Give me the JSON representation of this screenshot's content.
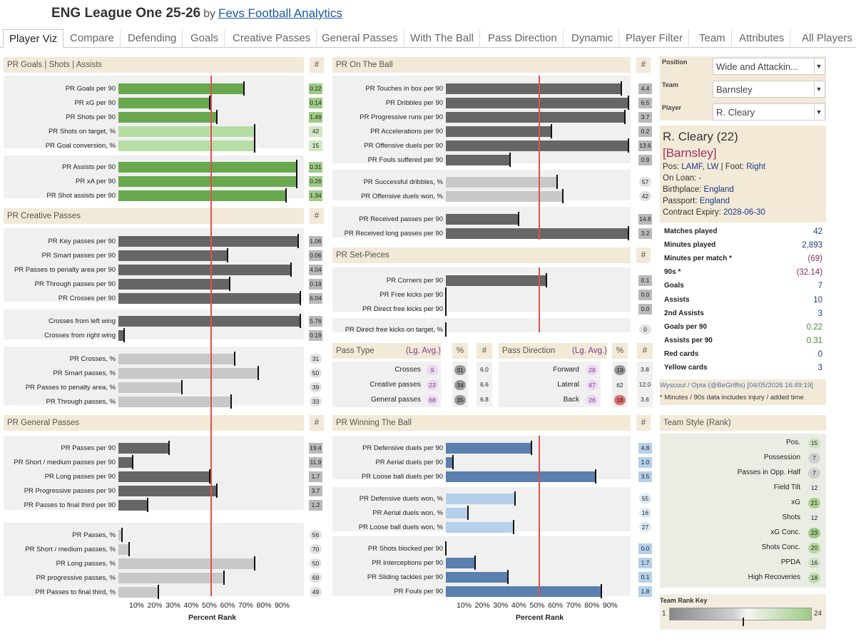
{
  "header": {
    "title": "ENG League One 25-26",
    "by": "by",
    "author": "Fevs Football Analytics"
  },
  "tabs": [
    "Player Viz",
    "Compare",
    "Defending",
    "Goals",
    "Creative Passes",
    "General Passes",
    "With The Ball",
    "Pass Direction",
    "Dynamic",
    "Player Filter",
    "Team",
    "Attributes",
    "All Players"
  ],
  "hash_label": "#",
  "sections": [
    {
      "title": "PR Goals | Shots | Assists",
      "groups": [
        {
          "type": "dark",
          "color": "#6aa84f",
          "rows": [
            {
              "label": "PR Goals per 90",
              "pr": 69,
              "value": "0.22"
            },
            {
              "label": "PR xG per 90",
              "pr": 50,
              "value": "0.14"
            },
            {
              "label": "PR Shots per 90",
              "pr": 54,
              "value": "1.49"
            },
            {
              "label": "PR Shots on target, %",
              "pr": 75,
              "value": "42"
            },
            {
              "label": "PR Goal conversion, %",
              "pr": 75,
              "value": "15"
            }
          ]
        },
        {
          "type": "dark",
          "color": "#6aa84f",
          "rows": [
            {
              "label": "PR Assists per 90",
              "pr": 98,
              "value": "0.31"
            },
            {
              "label": "PR xA per 90",
              "pr": 98,
              "value": "0.26"
            },
            {
              "label": "PR Shot assists per 90",
              "pr": 92,
              "value": "1.34"
            }
          ]
        }
      ]
    },
    {
      "title": "PR Creative Passes",
      "groups": [
        {
          "type": "dark",
          "rows": [
            {
              "label": "PR Key passes per 90",
              "pr": 99,
              "value": "1.06"
            },
            {
              "label": "PR Smart passes per 90",
              "pr": 60,
              "value": "0.06"
            },
            {
              "label": "PR Passes to penalty area per 90",
              "pr": 95,
              "value": "4.04"
            },
            {
              "label": "PR Through passes per 90",
              "pr": 61,
              "value": "0.19"
            },
            {
              "label": "PR Crosses per 90",
              "pr": 100,
              "value": "6.04"
            }
          ]
        },
        {
          "type": "dark",
          "rows": [
            {
              "label": "Crosses from left wing",
              "pr": 100,
              "value": "5.76"
            },
            {
              "label": "Crosses from right wing",
              "pr": 3,
              "value": "0.19"
            }
          ]
        },
        {
          "type": "light",
          "rows": [
            {
              "label": "PR Crosses, %",
              "pr": 64,
              "value": "31"
            },
            {
              "label": "PR Smart passes, %",
              "pr": 77,
              "value": "50"
            },
            {
              "label": "PR Passes to penalty area, %",
              "pr": 35,
              "value": "39"
            },
            {
              "label": "PR Through passes, %",
              "pr": 62,
              "value": "33"
            }
          ]
        }
      ]
    },
    {
      "title": "PR General Passes",
      "groups": [
        {
          "type": "dark",
          "rows": [
            {
              "label": "PR Passes per 90",
              "pr": 28,
              "value": "19.4"
            },
            {
              "label": "PR Short / medium passes per 90",
              "pr": 8,
              "value": "11.9"
            },
            {
              "label": "PR Long passes per 90",
              "pr": 50,
              "value": "1.7"
            },
            {
              "label": "PR Progressive passes per 90",
              "pr": 54,
              "value": "3.7"
            },
            {
              "label": "PR Passes to final third per 90",
              "pr": 16,
              "value": "1.2"
            }
          ]
        },
        {
          "type": "light",
          "rows": [
            {
              "label": "PR Passes, %",
              "pr": 2,
              "value": "56"
            },
            {
              "label": "PR Short / medium passes, %",
              "pr": 6,
              "value": "70"
            },
            {
              "label": "PR Long passes, %",
              "pr": 75,
              "value": "50"
            },
            {
              "label": "PR progressive passes, %",
              "pr": 58,
              "value": "69"
            },
            {
              "label": "PR Passes to final third, %",
              "pr": 22,
              "value": "49"
            }
          ]
        }
      ]
    },
    {
      "title": "PR On The Ball",
      "groups": [
        {
          "type": "dark",
          "rows": [
            {
              "label": "PR Touches in box per 90",
              "pr": 96,
              "value": "4.4"
            },
            {
              "label": "PR Dribbles per 90",
              "pr": 100,
              "value": "6.5"
            },
            {
              "label": "PR Progressive runs per 90",
              "pr": 98,
              "value": "3.7"
            },
            {
              "label": "PR Accelerations per 90",
              "pr": 58,
              "value": "0.2"
            },
            {
              "label": "PR Offensive duels per 90",
              "pr": 100,
              "value": "13.6"
            },
            {
              "label": "PR Fouls suffered per 90",
              "pr": 35,
              "value": "0.9"
            }
          ]
        },
        {
          "type": "light",
          "rows": [
            {
              "label": "PR Successful dribbles, %",
              "pr": 61,
              "value": "57"
            },
            {
              "label": "PR Offensive duels won, %",
              "pr": 64,
              "value": "42"
            }
          ]
        },
        {
          "type": "dark",
          "rows": [
            {
              "label": "PR Received passes per 90",
              "pr": 40,
              "value": "14.8"
            },
            {
              "label": "PR Received long passes per 90",
              "pr": 100,
              "value": "3.2"
            }
          ]
        }
      ]
    },
    {
      "title": "PR Set-Pieces",
      "groups": [
        {
          "type": "dark",
          "rows": [
            {
              "label": "PR Corners per 90",
              "pr": 55,
              "value": "0.1"
            },
            {
              "label": "PR Free kicks per 90",
              "pr": 0,
              "value": "0.0"
            },
            {
              "label": "PR Direct free kicks per 90",
              "pr": 0,
              "value": "0.0"
            }
          ]
        },
        {
          "type": "light",
          "rows": [
            {
              "label": "PR Direct free kicks on target, %",
              "pr": 0,
              "value": "0"
            }
          ]
        }
      ]
    },
    {
      "title": "PR Winning The Ball",
      "groups": [
        {
          "type": "dark",
          "color": "#5b7fae",
          "rows": [
            {
              "label": "PR Defensive duels per 90",
              "pr": 47,
              "value": "4.8"
            },
            {
              "label": "PR Aerial duels per 90",
              "pr": 4,
              "value": "1.0"
            },
            {
              "label": "PR Loose ball duels per 90",
              "pr": 82,
              "value": "3.5"
            }
          ]
        },
        {
          "type": "light",
          "color": "#b4d0ea",
          "rows": [
            {
              "label": "PR Defensive duels won, %",
              "pr": 38,
              "value": "55"
            },
            {
              "label": "PR Aerial duels won, %",
              "pr": 12,
              "value": "16"
            },
            {
              "label": "PR Loose ball duels won, %",
              "pr": 37,
              "value": "27"
            }
          ]
        },
        {
          "type": "dark",
          "color": "#5b7fae",
          "rows": [
            {
              "label": "PR Shots blocked per 90",
              "pr": 0,
              "value": "0.0"
            },
            {
              "label": "PR Interceptions per 90",
              "pr": 16,
              "value": "1.7"
            },
            {
              "label": "PR Sliding tackles per 90",
              "pr": 34,
              "value": "0.1"
            },
            {
              "label": "PR Fouls per 90",
              "pr": 85,
              "value": "1.8"
            }
          ]
        }
      ]
    }
  ],
  "pass_type": {
    "title": "Pass Type",
    "avg_label": "(Lg. Avg.)",
    "pct_label": "%",
    "hash_label": "#",
    "rows": [
      {
        "label": "Crosses",
        "avg": "9",
        "pct": "31",
        "count": "6.0"
      },
      {
        "label": "Creative passes",
        "avg": "23",
        "pct": "34",
        "count": "6.6"
      },
      {
        "label": "General passes",
        "avg": "68",
        "pct": "35",
        "count": "6.8"
      }
    ]
  },
  "pass_direction": {
    "title": "Pass Direction",
    "avg_label": "(Lg. Avg.)",
    "pct_label": "%",
    "hash_label": "#",
    "rows": [
      {
        "label": "Forward",
        "avg": "28",
        "pct": "19",
        "count": "3.8"
      },
      {
        "label": "Lateral",
        "avg": "47",
        "pct": "62",
        "count": "12.0"
      },
      {
        "label": "Back",
        "avg": "26",
        "pct": "18",
        "count": "3.6"
      }
    ]
  },
  "axis": {
    "ticks": [
      "10%",
      "20%",
      "30%",
      "40%",
      "50%",
      "60%",
      "70%",
      "80%",
      "90%"
    ],
    "label": "Percent Rank"
  },
  "filters": {
    "position": {
      "label": "Position",
      "value": "Wide and Attackin..."
    },
    "team": {
      "label": "Team",
      "value": "Barnsley"
    },
    "player": {
      "label": "Player",
      "value": "R. Cleary"
    }
  },
  "player": {
    "name": "R. Cleary (22)",
    "team": "[Barnsley]",
    "pos_label": "Pos:",
    "pos": "LAMF, LW",
    "foot_label": "| Foot:",
    "foot": "Right",
    "loan_label": "On Loan:",
    "loan": "-",
    "birthplace_label": "Birthplace:",
    "birthplace": "England",
    "passport_label": "Passport:",
    "passport": "England",
    "contract_label": "Contract Expiry:",
    "contract": "2028-06-30"
  },
  "stats": [
    {
      "label": "Matches played",
      "value": "42",
      "color": "#1a3a8a"
    },
    {
      "label": "Minutes played",
      "value": "2,893",
      "color": "#1a3a8a"
    },
    {
      "label": "Minutes per match *",
      "value": "(69)",
      "color": "#8a2a5a"
    },
    {
      "label": "90s *",
      "value": "(32.14)",
      "color": "#8a2a5a"
    },
    {
      "label": "Goals",
      "value": "7",
      "color": "#1a3a8a"
    },
    {
      "label": "Assists",
      "value": "10",
      "color": "#1a3a8a"
    },
    {
      "label": "2nd Assists",
      "value": "3",
      "color": "#1a3a8a"
    },
    {
      "label": "Goals per 90",
      "value": "0.22",
      "color": "#4a8a3a"
    },
    {
      "label": "Assists per 90",
      "value": "0.31",
      "color": "#4a8a3a"
    },
    {
      "label": "Red cards",
      "value": "0",
      "color": "#1a3a8a"
    },
    {
      "label": "Yellow cards",
      "value": "3",
      "color": "#1a3a8a"
    }
  ],
  "credit": "Wyscout / Opta (@BeGriffis) [04/05/2026 16:49:19]",
  "note": "* Minutes / 90s data includes injury / added time",
  "team_style": {
    "title": "Team Style (Rank)",
    "rows": [
      {
        "label": "Pos.",
        "rank": "15",
        "color": "#cfe3c4"
      },
      {
        "label": "Possession",
        "rank": "7",
        "color": "#d0d0d0"
      },
      {
        "label": "Passes in Opp. Half",
        "rank": "7",
        "color": "#d0d0d0"
      },
      {
        "label": "Field Tilt",
        "rank": "12",
        "color": "#e8e8e8"
      },
      {
        "label": "xG",
        "rank": "21",
        "color": "#a9d08e"
      },
      {
        "label": "Shots",
        "rank": "12",
        "color": "#e8e8e8"
      },
      {
        "label": "xG Conc.",
        "rank": "23",
        "color": "#9ccb85"
      },
      {
        "label": "Shots Conc.",
        "rank": "20",
        "color": "#b5d69d"
      },
      {
        "label": "PPDA",
        "rank": "16",
        "color": "#cfe3c4"
      },
      {
        "label": "High Recoveries",
        "rank": "18",
        "color": "#bfdcab"
      }
    ]
  },
  "rank_key": {
    "title": "Team Rank Key",
    "min": "1",
    "max": "24"
  }
}
